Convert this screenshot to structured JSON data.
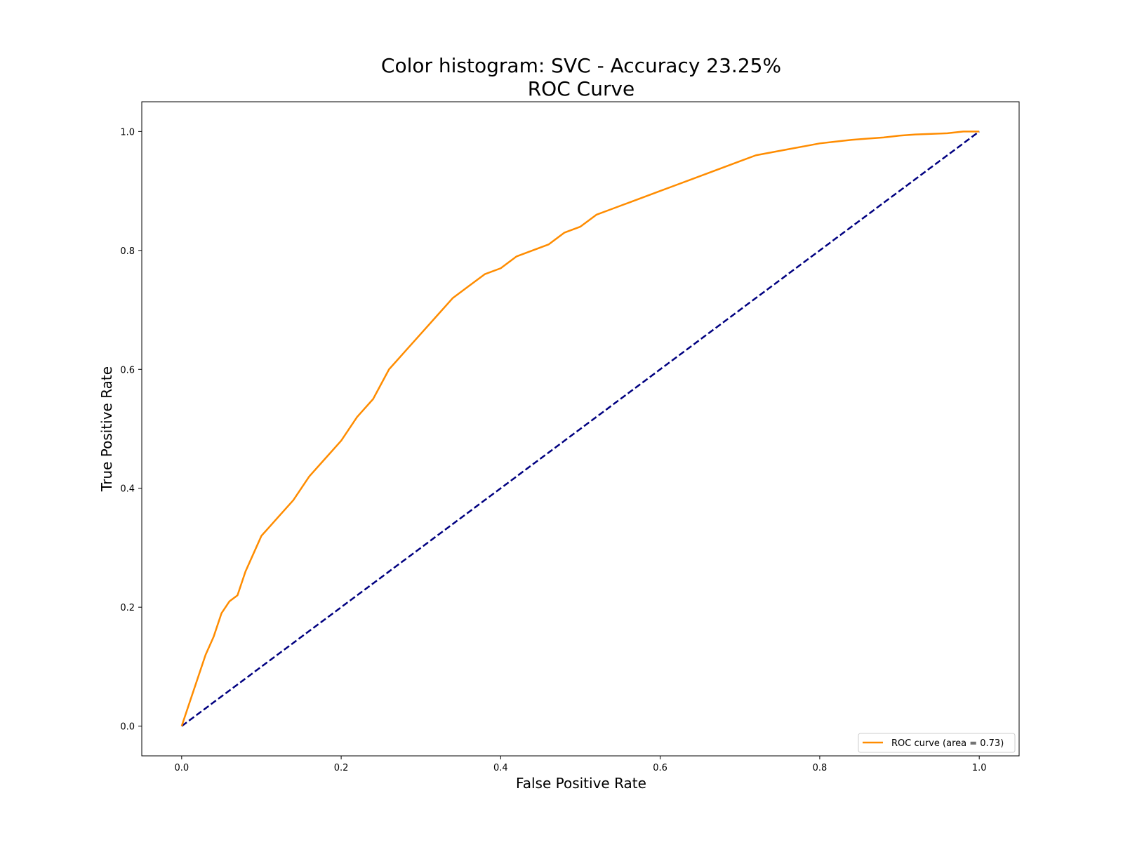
{
  "chart_data": {
    "type": "line",
    "title": "Color histogram: SVC - Accuracy 23.25%",
    "subtitle": "ROC Curve",
    "xlabel": "False Positive Rate",
    "ylabel": "True Positive Rate",
    "xlim": [
      -0.05,
      1.05
    ],
    "ylim": [
      -0.05,
      1.05
    ],
    "xticks": [
      "0.0",
      "0.2",
      "0.4",
      "0.6",
      "0.8",
      "1.0"
    ],
    "yticks": [
      "0.0",
      "0.2",
      "0.4",
      "0.6",
      "0.8",
      "1.0"
    ],
    "grid": false,
    "legend_position": "lower-right",
    "series": [
      {
        "name": "ROC curve (area = 0.73)",
        "color": "#ff8c00",
        "line_style": "solid",
        "x": [
          0.0,
          0.01,
          0.02,
          0.03,
          0.04,
          0.05,
          0.06,
          0.07,
          0.08,
          0.09,
          0.1,
          0.12,
          0.14,
          0.16,
          0.18,
          0.2,
          0.22,
          0.24,
          0.26,
          0.28,
          0.3,
          0.32,
          0.34,
          0.36,
          0.38,
          0.4,
          0.42,
          0.44,
          0.46,
          0.48,
          0.5,
          0.52,
          0.54,
          0.56,
          0.58,
          0.6,
          0.62,
          0.64,
          0.66,
          0.68,
          0.7,
          0.72,
          0.74,
          0.76,
          0.78,
          0.8,
          0.82,
          0.84,
          0.86,
          0.88,
          0.9,
          0.92,
          0.94,
          0.96,
          0.98,
          1.0
        ],
        "y": [
          0.0,
          0.04,
          0.08,
          0.12,
          0.15,
          0.19,
          0.21,
          0.22,
          0.26,
          0.29,
          0.32,
          0.35,
          0.38,
          0.42,
          0.45,
          0.48,
          0.52,
          0.55,
          0.6,
          0.63,
          0.66,
          0.69,
          0.72,
          0.74,
          0.76,
          0.77,
          0.79,
          0.8,
          0.81,
          0.83,
          0.84,
          0.86,
          0.87,
          0.88,
          0.89,
          0.9,
          0.91,
          0.92,
          0.93,
          0.94,
          0.95,
          0.96,
          0.965,
          0.97,
          0.975,
          0.98,
          0.983,
          0.986,
          0.988,
          0.99,
          0.993,
          0.995,
          0.996,
          0.997,
          1.0,
          1.0
        ]
      },
      {
        "name": "",
        "color": "#000080",
        "line_style": "dashed",
        "x": [
          0.0,
          1.0
        ],
        "y": [
          0.0,
          1.0
        ]
      }
    ]
  }
}
